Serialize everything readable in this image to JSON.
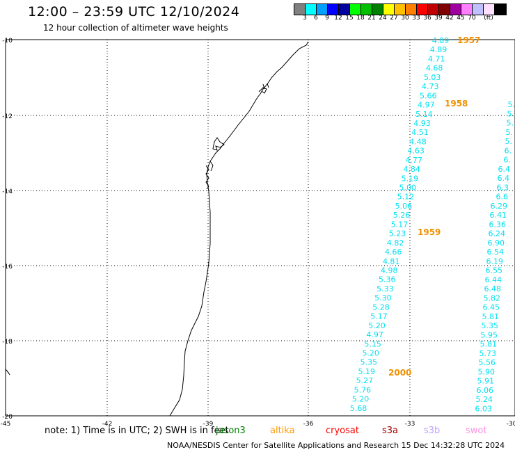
{
  "header": {
    "title": "12:00 – 23:59 UTC 12/10/2024",
    "subtitle": "12 hour collection of altimeter wave heights"
  },
  "legend": {
    "unit": "(ft)",
    "colors": [
      "#808080",
      "#00ffff",
      "#00a0ff",
      "#0000ff",
      "#0000a0",
      "#00ff00",
      "#00c000",
      "#008000",
      "#ffff00",
      "#ffc000",
      "#ff8000",
      "#ff0000",
      "#c00000",
      "#800000",
      "#a000a0",
      "#ff80ff",
      "#c0c0ff",
      "#ffe0ff",
      "#000000"
    ],
    "labels": [
      "3",
      "6",
      "9",
      "12",
      "15",
      "18",
      "21",
      "24",
      "27",
      "30",
      "33",
      "36",
      "39",
      "42",
      "45",
      "70"
    ]
  },
  "axes": {
    "x_ticks": [
      "-45",
      "-42",
      "-39",
      "-36",
      "-33",
      "-30"
    ],
    "y_ticks": [
      "-10",
      "-12",
      "-14",
      "-16",
      "-18",
      "-20"
    ]
  },
  "tracks": {
    "color": "#00e0f0",
    "track1": [
      "4.89",
      "4.89",
      "4.71",
      "4.68",
      "5.03",
      "4.73",
      "5.66",
      "4.97",
      "5.14",
      "4.93",
      "4.51",
      "4.48",
      "4.63",
      "4.77",
      "4.84",
      "5.19",
      "5.00",
      "5.12",
      "5.06",
      "5.26",
      "5.17",
      "5.23",
      "4.82",
      "4.66",
      "4.81",
      "4.98",
      "5.36",
      "5.33",
      "5.30",
      "5.28",
      "5.17",
      "5.20",
      "4.97",
      "5.15",
      "5.20",
      "5.35",
      "5.19",
      "5.27",
      "5.76",
      "5.20",
      "5.68"
    ],
    "track2": [
      "5.",
      "5.",
      "5.",
      "5.",
      "5.",
      "6.",
      "6.",
      "6.4",
      "6.4",
      "6.3",
      "6.6",
      "6.29",
      "6.41",
      "6.36",
      "6.24",
      "6.90",
      "6.54",
      "6.19",
      "6.55",
      "6.44",
      "6.48",
      "5.82",
      "6.45",
      "5.81",
      "5.35",
      "5.95",
      "5.81",
      "5.73",
      "5.56",
      "5.90",
      "5.91",
      "6.06",
      "5.24",
      "6.03"
    ]
  },
  "time_labels": {
    "color": "#f09000",
    "items": [
      "1957",
      "1958",
      "1959",
      "2000"
    ]
  },
  "footer": {
    "note": "note: 1) Time is in UTC; 2) SWH is in feet",
    "satellites": [
      {
        "name": "jason3",
        "color": "#008000"
      },
      {
        "name": "altika",
        "color": "#ff9900"
      },
      {
        "name": "cryosat",
        "color": "#ff0000"
      },
      {
        "name": "s3a",
        "color": "#a00000"
      },
      {
        "name": "s3b",
        "color": "#c0a0ff"
      },
      {
        "name": "swot",
        "color": "#ff90e0"
      }
    ],
    "credit": "NOAA/NESDIS Center for Satellite Applications and Research     15 Dec 14:32:28 UTC 2024"
  }
}
